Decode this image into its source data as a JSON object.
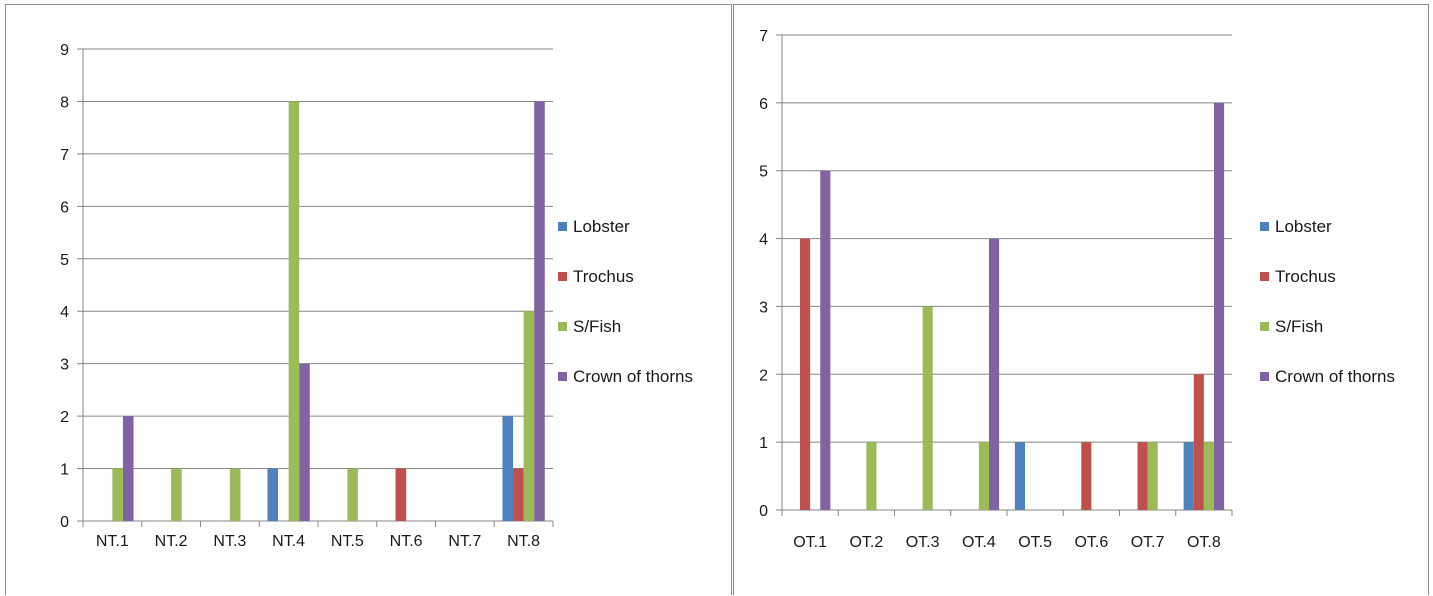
{
  "chart_data": [
    {
      "type": "bar",
      "categories": [
        "NT.1",
        "NT.2",
        "NT.3",
        "NT.4",
        "NT.5",
        "NT.6",
        "NT.7",
        "NT.8"
      ],
      "series": [
        {
          "name": "Lobster",
          "color": "#4f81bd",
          "values": [
            0,
            0,
            0,
            1,
            0,
            0,
            0,
            2
          ]
        },
        {
          "name": "Trochus",
          "color": "#c0504d",
          "values": [
            0,
            0,
            0,
            0,
            0,
            1,
            0,
            1
          ]
        },
        {
          "name": "S/Fish",
          "color": "#9bbb59",
          "values": [
            1,
            1,
            1,
            8,
            1,
            0,
            0,
            4
          ]
        },
        {
          "name": "Crown of thorns",
          "color": "#8064a2",
          "values": [
            2,
            0,
            0,
            3,
            0,
            0,
            0,
            8
          ]
        }
      ],
      "yticks": [
        "0",
        "1",
        "2",
        "3",
        "4",
        "5",
        "6",
        "7",
        "8",
        "9"
      ],
      "ylim": [
        0,
        9
      ],
      "grid": true,
      "legend": "right"
    },
    {
      "type": "bar",
      "categories": [
        "OT.1",
        "OT.2",
        "OT.3",
        "OT.4",
        "OT.5",
        "OT.6",
        "OT.7",
        "OT.8"
      ],
      "series": [
        {
          "name": "Lobster",
          "color": "#4f81bd",
          "values": [
            0,
            0,
            0,
            0,
            1,
            0,
            0,
            1
          ]
        },
        {
          "name": "Trochus",
          "color": "#c0504d",
          "values": [
            4,
            0,
            0,
            0,
            0,
            1,
            1,
            2
          ]
        },
        {
          "name": "S/Fish",
          "color": "#9bbb59",
          "values": [
            0,
            1,
            3,
            1,
            0,
            0,
            1,
            1
          ]
        },
        {
          "name": "Crown of thorns",
          "color": "#8064a2",
          "values": [
            5,
            0,
            0,
            4,
            0,
            0,
            0,
            6
          ]
        }
      ],
      "yticks": [
        "0",
        "1",
        "2",
        "3",
        "4",
        "5",
        "6",
        "7"
      ],
      "ylim": [
        0,
        7
      ],
      "grid": true,
      "legend": "right"
    }
  ]
}
